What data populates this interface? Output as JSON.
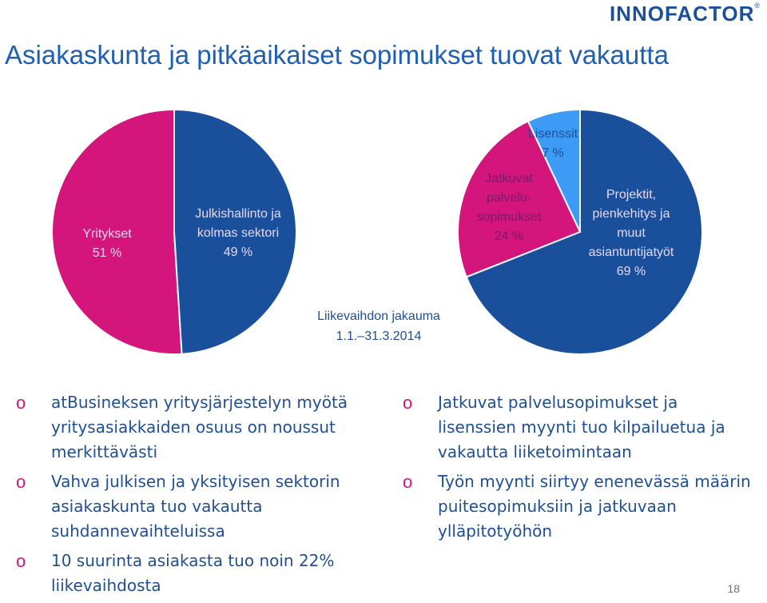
{
  "header": {
    "logo_text": "INNOFACTOR",
    "title": "Asiakaskunta ja pitkäaikaiset sopimukset tuovat vakautta"
  },
  "colors": {
    "magenta": "#d4157c",
    "dark_blue": "#1a4f9c",
    "light_blue": "#3c9cf5",
    "label_light": "#e8d8ee",
    "label_dark": "#7a1a6a",
    "text_blue": "#1f4f93"
  },
  "chart_data": [
    {
      "type": "pie",
      "values": [
        51,
        49
      ],
      "labels": [
        {
          "lines": [
            "Yritykset",
            "51 %"
          ]
        },
        {
          "lines": [
            "Julkishallinto ja",
            "kolmas sektori",
            "49 %"
          ]
        }
      ],
      "colors": [
        "#d4157c",
        "#1a4f9c"
      ]
    },
    {
      "type": "pie",
      "values": [
        7,
        69,
        24
      ],
      "labels": [
        {
          "lines": [
            "Lisenssit",
            "7 %"
          ]
        },
        {
          "lines": [
            "Projektit,",
            "pienkehitys ja",
            "muut",
            "asiantuntijatyöt",
            "69 %"
          ]
        },
        {
          "lines": [
            "Jatkuvat",
            "palvelu-",
            "sopimukset",
            "24 %"
          ]
        }
      ],
      "colors": [
        "#3c9cf5",
        "#1a4f9c",
        "#d4157c"
      ]
    }
  ],
  "caption": {
    "line1": "Liikevaihdon jakauma",
    "line2": "1.1.–31.3.2014"
  },
  "bullets_left": [
    {
      "marker": "o",
      "text": "atBusineksen yritysjärjestelyn myötä yritysasiakkaiden osuus on noussut merkittävästi"
    },
    {
      "marker": "o",
      "text": "Vahva julkisen ja yksityisen sektorin asiakaskunta tuo vakautta suhdannevaihteluissa"
    },
    {
      "marker": "o",
      "text": "10 suurinta asiakasta tuo noin 22% liikevaihdosta"
    }
  ],
  "bullets_right": [
    {
      "marker": "o",
      "text": "Jatkuvat palvelusopimukset ja lisenssien myynti tuo kilpailuetua ja vakautta liiketoimintaan"
    },
    {
      "marker": "o",
      "text": "Työn myynti siirtyy enenevässä määrin puitesopimuksiin ja jatkuvaan ylläpitotyöhön"
    }
  ],
  "footer": {
    "page_number": "18"
  }
}
